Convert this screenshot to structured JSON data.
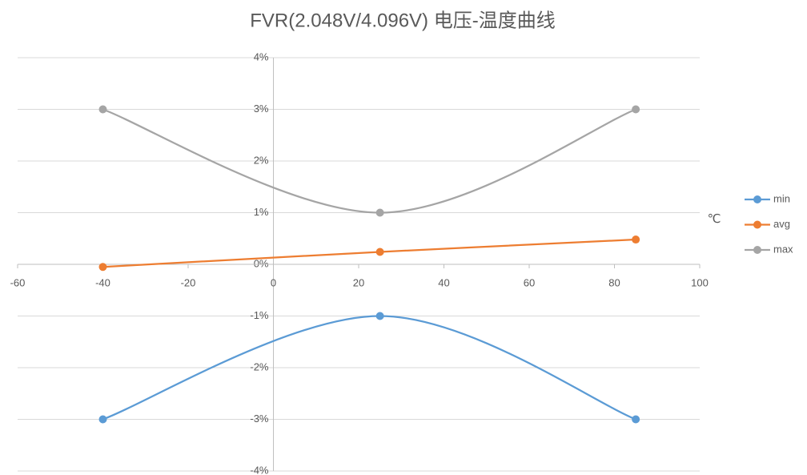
{
  "chart_data": {
    "type": "scatter-smooth",
    "title": "FVR(2.048V/4.096V) 电压-温度曲线",
    "x_label": "℃",
    "xlim": [
      -60,
      100
    ],
    "xticks": [
      -60,
      -40,
      -20,
      0,
      20,
      40,
      60,
      80,
      100
    ],
    "ylim": [
      -4,
      4
    ],
    "yticks": [
      {
        "value": 4,
        "label": "4%"
      },
      {
        "value": 3,
        "label": "3%"
      },
      {
        "value": 2,
        "label": "2%"
      },
      {
        "value": 1,
        "label": "1%"
      },
      {
        "value": 0,
        "label": "0%"
      },
      {
        "value": -1,
        "label": "-1%"
      },
      {
        "value": -2,
        "label": "-2%"
      },
      {
        "value": -3,
        "label": "-3%"
      },
      {
        "value": -4,
        "label": "-4%"
      }
    ],
    "grid": true,
    "legend": "right",
    "x": [
      -40,
      25,
      85
    ],
    "series": [
      {
        "name": "min",
        "color": "#5b9bd5",
        "values": [
          -3,
          -1,
          -3
        ]
      },
      {
        "name": "avg",
        "color": "#ed7d31",
        "values": [
          -0.05,
          0.24,
          0.48
        ]
      },
      {
        "name": "max",
        "color": "#a5a5a5",
        "values": [
          3,
          1,
          3
        ]
      }
    ]
  }
}
